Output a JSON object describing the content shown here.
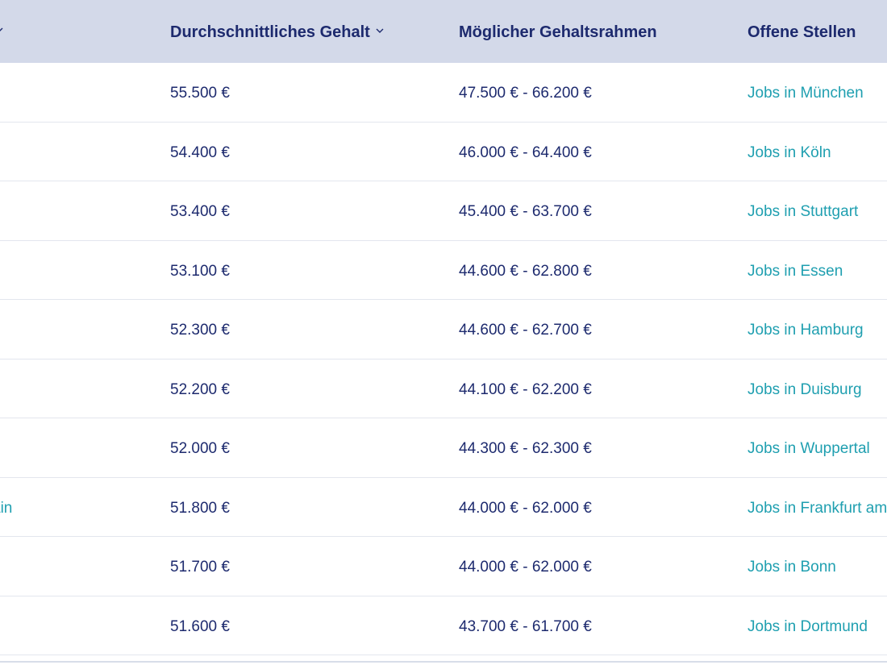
{
  "table": {
    "headers": {
      "avg": "Durchschnittliches Gehalt",
      "range": "Möglicher Gehaltsrahmen",
      "jobs": "Offene Stellen"
    },
    "rows": [
      {
        "city": "",
        "avg": "55.500 €",
        "range": "47.500 € - 66.200 €",
        "jobs": "Jobs in München"
      },
      {
        "city": "",
        "avg": "54.400 €",
        "range": "46.000 € - 64.400 €",
        "jobs": "Jobs in Köln"
      },
      {
        "city": "",
        "avg": "53.400 €",
        "range": "45.400 € - 63.700 €",
        "jobs": "Jobs in Stuttgart"
      },
      {
        "city": "",
        "avg": "53.100 €",
        "range": "44.600 € - 62.800 €",
        "jobs": "Jobs in Essen"
      },
      {
        "city": "",
        "avg": "52.300 €",
        "range": "44.600 € - 62.700 €",
        "jobs": "Jobs in Hamburg"
      },
      {
        "city": "",
        "avg": "52.200 €",
        "range": "44.100 € - 62.200 €",
        "jobs": "Jobs in Duisburg"
      },
      {
        "city": "",
        "avg": "52.000 €",
        "range": "44.300 € - 62.300 €",
        "jobs": "Jobs in Wuppertal"
      },
      {
        "city": "ain",
        "avg": "51.800 €",
        "range": "44.000 € - 62.000 €",
        "jobs": "Jobs in Frankfurt am Main"
      },
      {
        "city": "",
        "avg": "51.700 €",
        "range": "44.000 € - 62.000 €",
        "jobs": "Jobs in Bonn"
      },
      {
        "city": "",
        "avg": "51.600 €",
        "range": "43.700 € - 61.700 €",
        "jobs": "Jobs in Dortmund"
      }
    ]
  },
  "icons": {
    "sort": "chevron-down-icon",
    "city_sort": "chevron-down-icon"
  },
  "colors": {
    "header_bg": "#d3d9e9",
    "header_text": "#1d2a6e",
    "value_text": "#1d2a6e",
    "link_text": "#1f9fb0",
    "divider": "#e3e6ee"
  }
}
